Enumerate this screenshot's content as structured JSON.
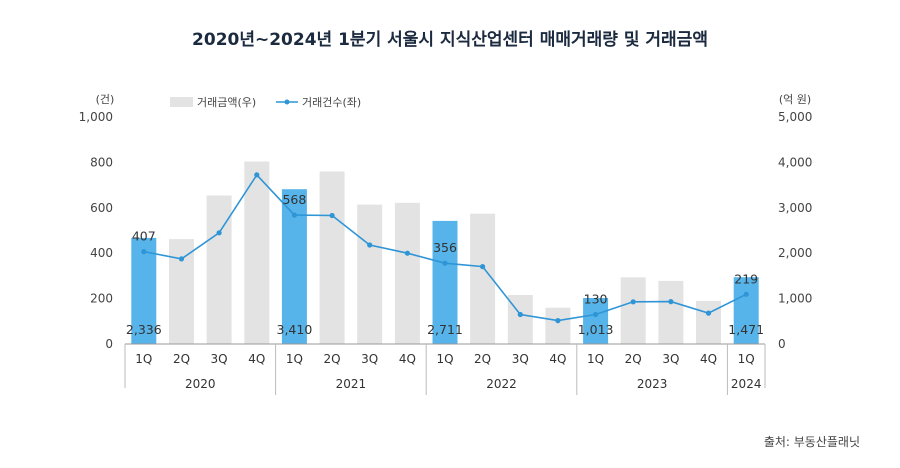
{
  "chart_data": {
    "type": "bar+line",
    "title": "2020년~2024년 1분기 서울시 지식산업센터 매매거래량 및 거래금액",
    "left_axis": {
      "unit": "(건)",
      "min": 0,
      "max": 1000,
      "ticks": [
        "0",
        "200",
        "400",
        "600",
        "800",
        "1,000"
      ]
    },
    "right_axis": {
      "unit": "(억 원)",
      "min": 0,
      "max": 5000,
      "ticks": [
        "0",
        "1,000",
        "2,000",
        "3,000",
        "4,000",
        "5,000"
      ]
    },
    "legend": {
      "bar": "거래금액(우)",
      "line": "거래건수(좌)"
    },
    "quarters": [
      "1Q",
      "2Q",
      "3Q",
      "4Q",
      "1Q",
      "2Q",
      "3Q",
      "4Q",
      "1Q",
      "2Q",
      "3Q",
      "4Q",
      "1Q",
      "2Q",
      "3Q",
      "4Q",
      "1Q"
    ],
    "years": [
      {
        "label": "2020",
        "quarters": 4
      },
      {
        "label": "2021",
        "quarters": 4
      },
      {
        "label": "2022",
        "quarters": 4
      },
      {
        "label": "2023",
        "quarters": 4
      },
      {
        "label": "2024",
        "quarters": 1
      }
    ],
    "amount_billion_krw": [
      2336,
      2310,
      3270,
      4020,
      3410,
      3800,
      3070,
      3110,
      2711,
      2870,
      1080,
      800,
      1013,
      1470,
      1390,
      950,
      1471
    ],
    "transactions": [
      407,
      375,
      490,
      745,
      568,
      566,
      436,
      400,
      356,
      341,
      130,
      103,
      130,
      186,
      187,
      136,
      219
    ],
    "highlight_indices": [
      0,
      4,
      8,
      12,
      16
    ],
    "bar_labels": [
      "2,336",
      "3,410",
      "2,711",
      "1,013",
      "1,471"
    ],
    "line_labels": [
      "407",
      "568",
      "356",
      "130",
      "219"
    ],
    "colors": {
      "bar": "#e3e3e3",
      "bar_highlight": "#56b4ea",
      "line": "#2f95d6",
      "axis": "#999999"
    }
  },
  "source": "출처: 부동산플래닛"
}
